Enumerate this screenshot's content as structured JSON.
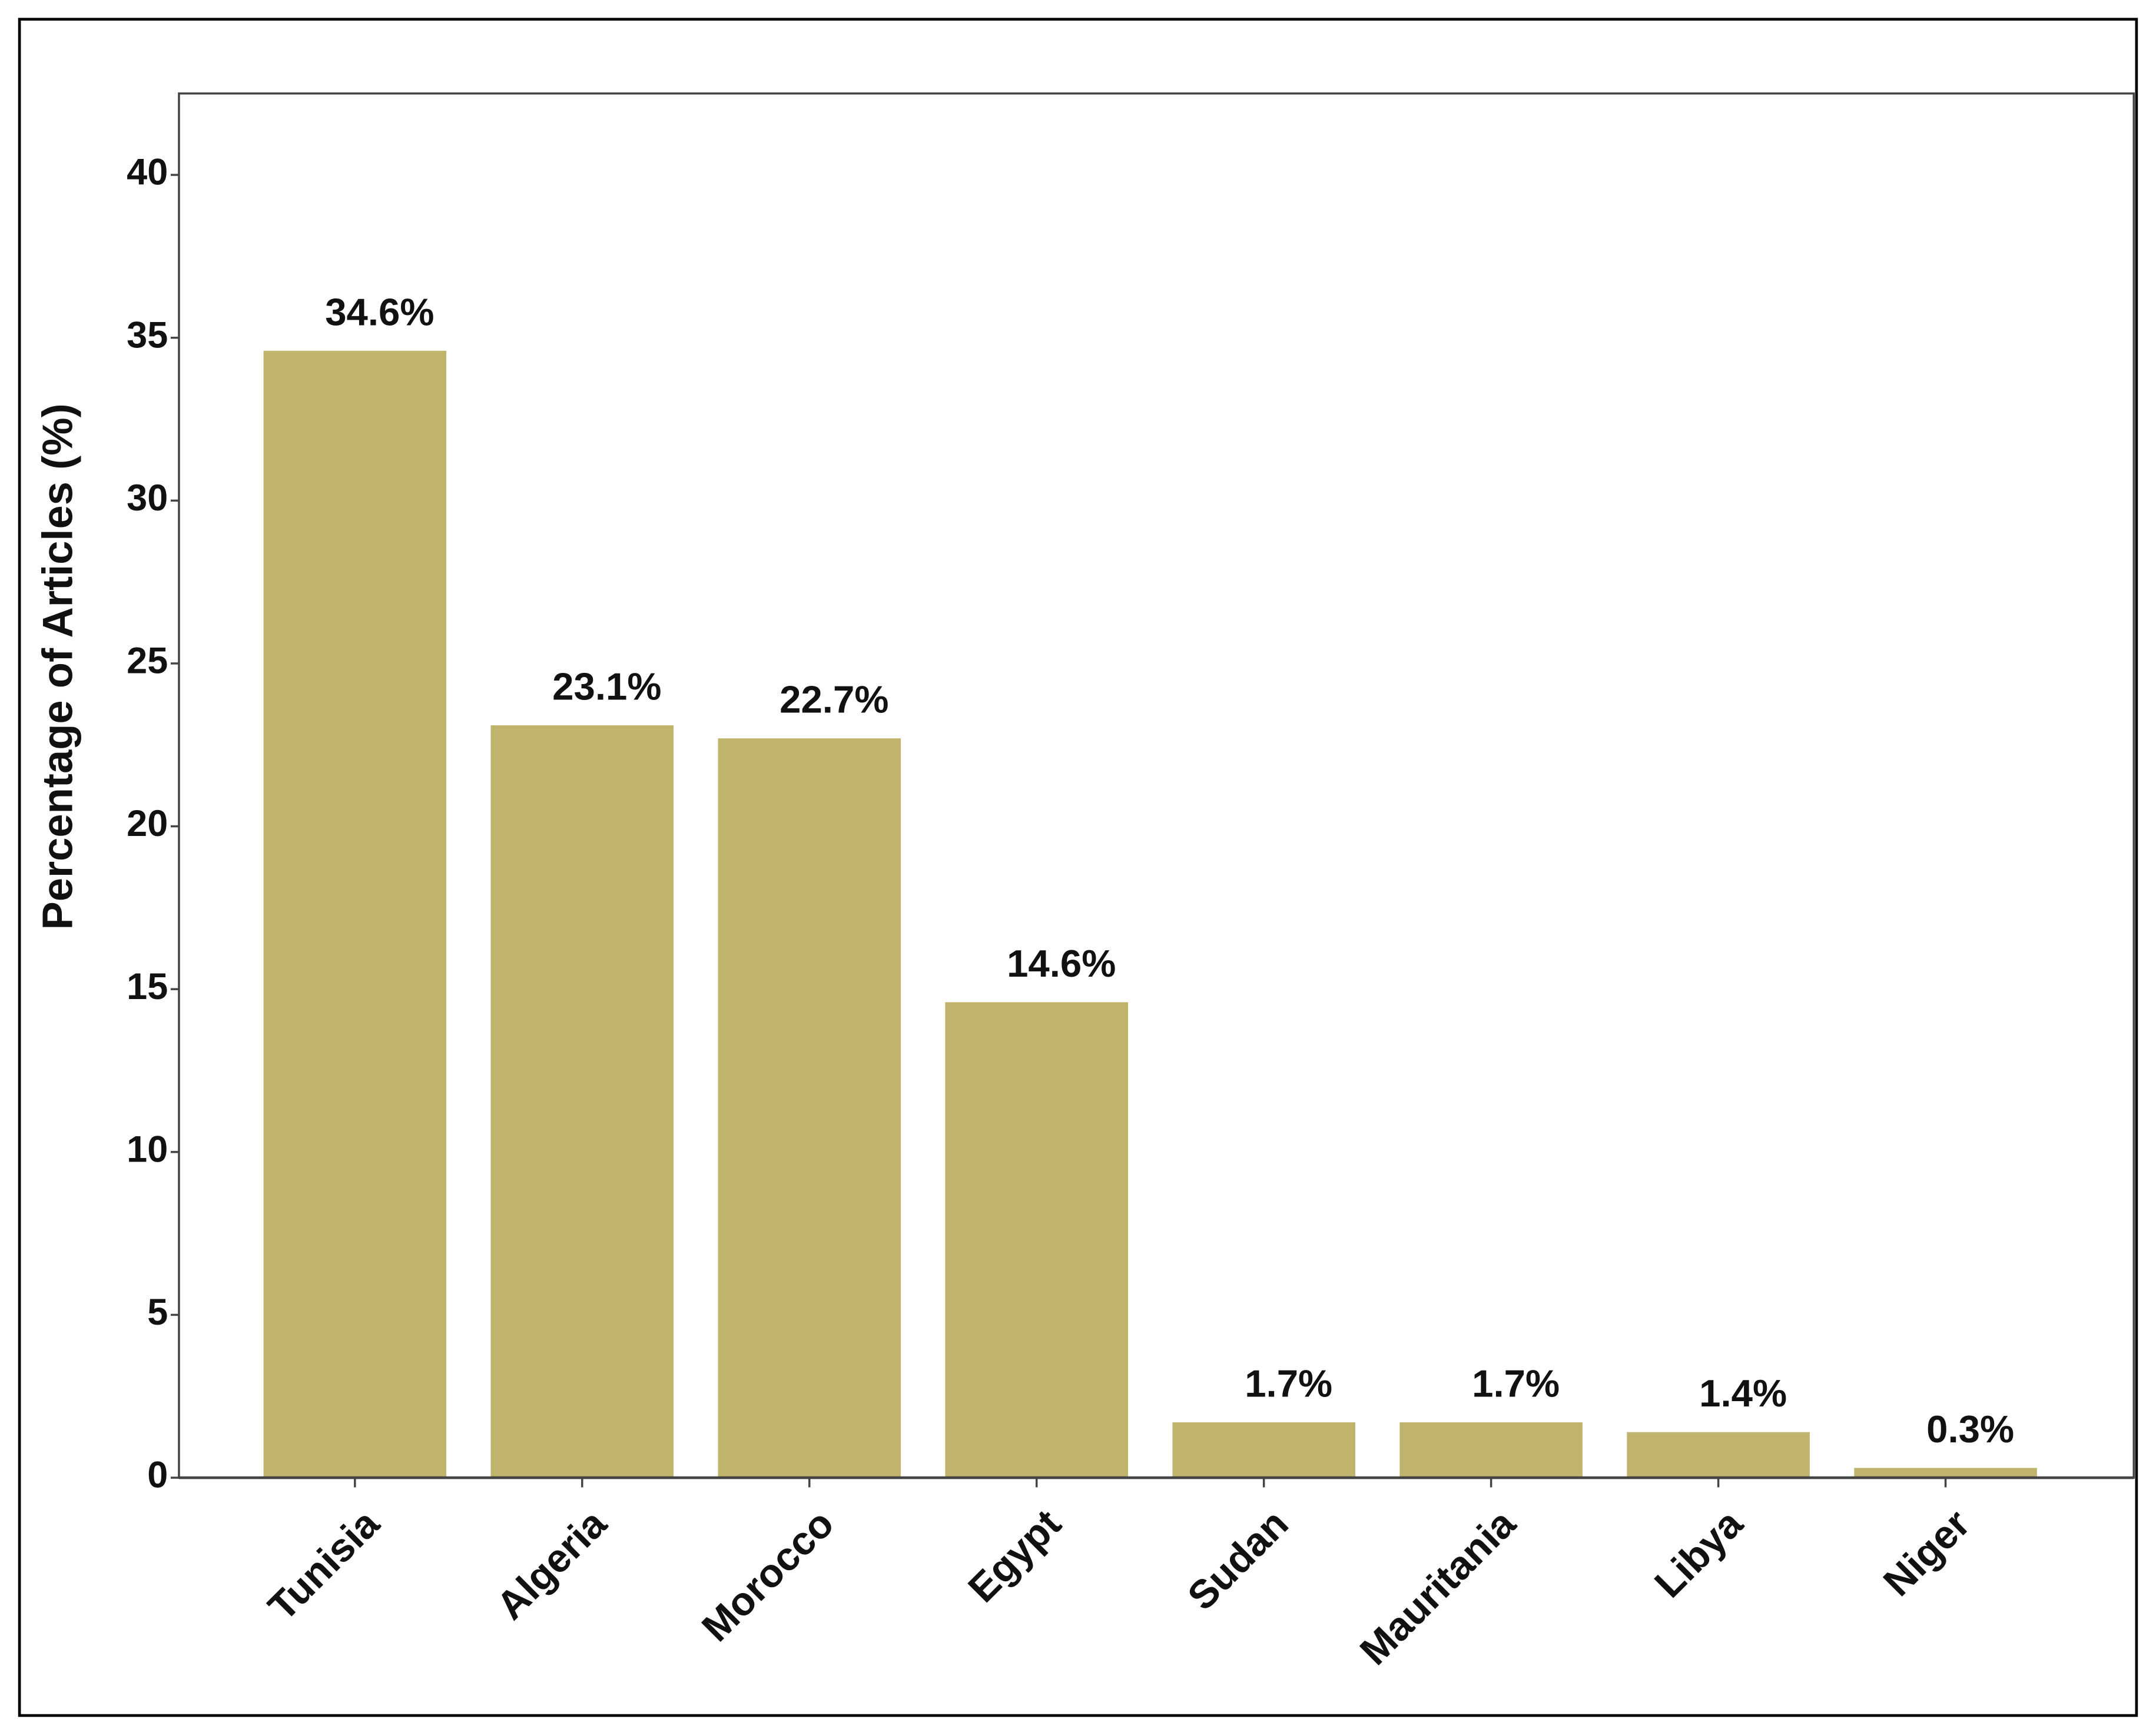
{
  "chart_data": {
    "type": "bar",
    "y_label": "Percentage of Articles (%)",
    "categories": [
      "Tunisia",
      "Algeria",
      "Morocco",
      "Egypt",
      "Sudan",
      "Mauritania",
      "Libya",
      "Niger"
    ],
    "values": [
      34.6,
      23.1,
      22.7,
      14.6,
      1.7,
      1.7,
      1.4,
      0.3
    ],
    "value_labels": [
      "34.6%",
      "23.1%",
      "22.7%",
      "14.6%",
      "1.7%",
      "1.7%",
      "1.4%",
      "0.3%"
    ],
    "color": "#c0b46c",
    "ylim": [
      0,
      42.5
    ],
    "yticks": [
      0,
      5,
      10,
      15,
      20,
      25,
      30,
      35,
      40
    ],
    "grid": false
  }
}
